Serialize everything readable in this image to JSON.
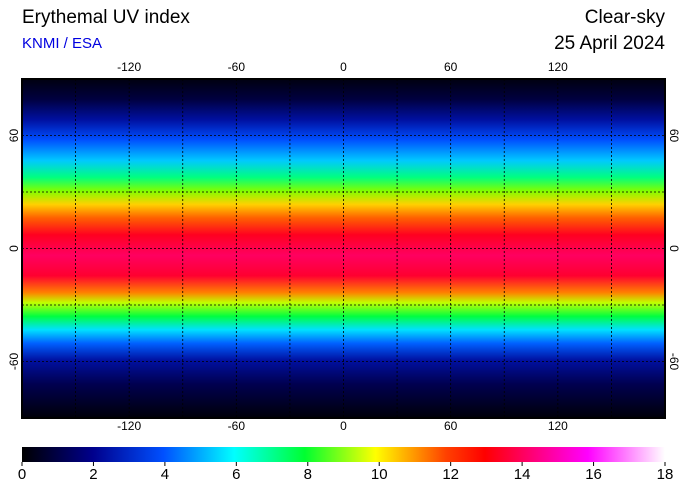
{
  "header": {
    "title": "Erythemal UV index",
    "credit": "KNMI / ESA",
    "mode": "Clear-sky",
    "date": "25 April 2024"
  },
  "map": {
    "lonlim": [
      -180,
      180
    ],
    "latlim": [
      90,
      -90
    ],
    "lon_ticks": [
      -120,
      -60,
      0,
      60,
      120
    ],
    "lat_ticks": [
      60,
      0,
      -60
    ],
    "grid_lons": [
      -150,
      -120,
      -90,
      -60,
      -30,
      0,
      30,
      60,
      90,
      120,
      150
    ],
    "grid_lats": [
      60,
      30,
      0,
      -30,
      -60
    ]
  },
  "colorbar": {
    "lim": [
      0,
      18
    ],
    "ticks": [
      0,
      2,
      4,
      6,
      8,
      10,
      12,
      14,
      16,
      18
    ]
  }
}
